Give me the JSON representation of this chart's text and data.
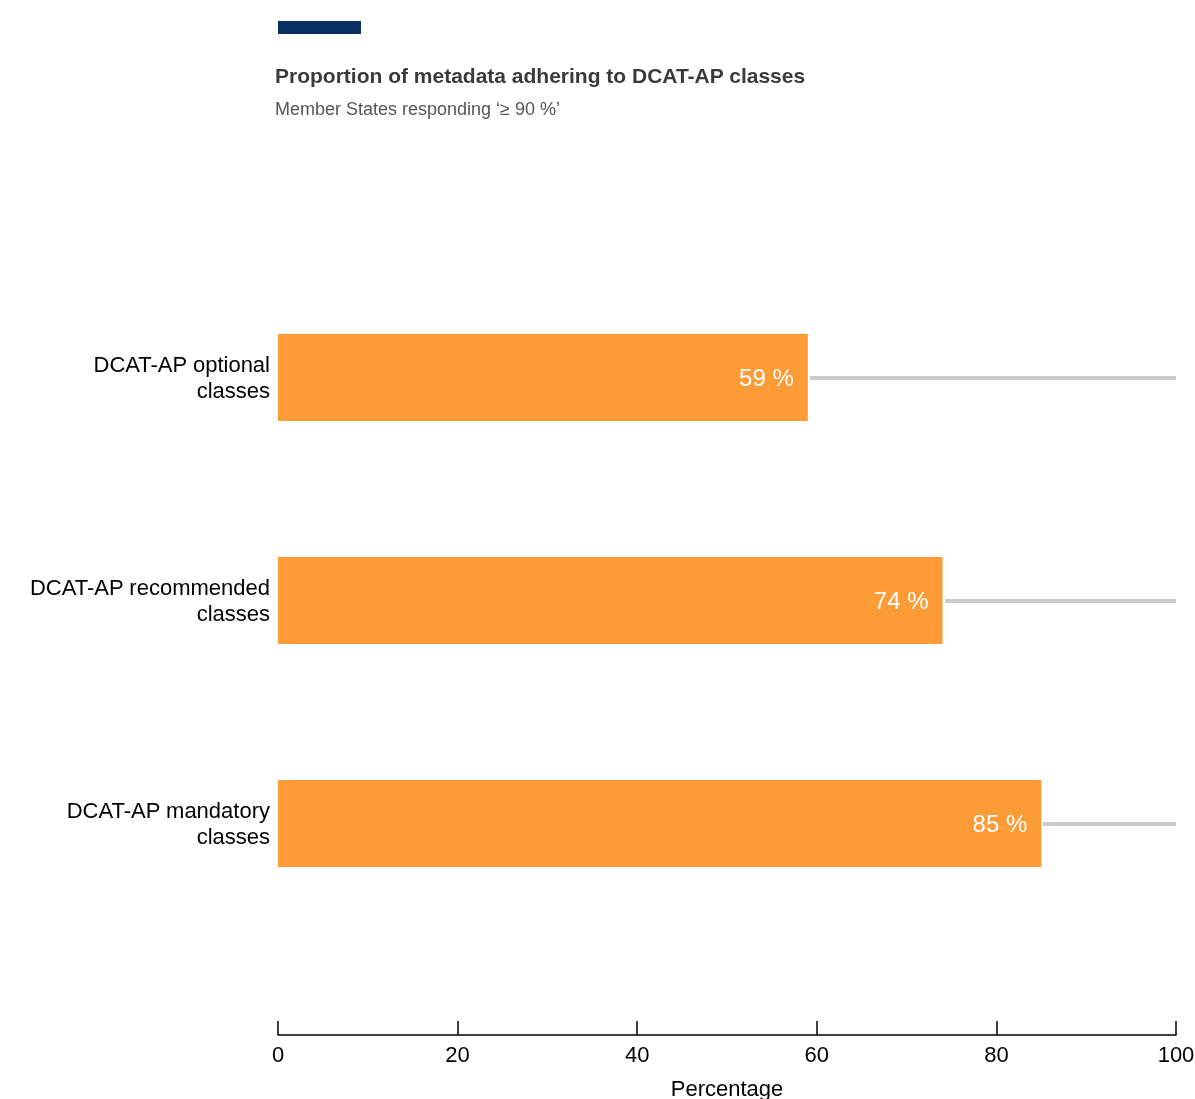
{
  "chart_data": {
    "type": "bar",
    "orientation": "horizontal",
    "title": "Proportion of metadata adhering to DCAT-AP classes",
    "subtitle": "Member States responding ‘≥ 90 %’",
    "xlabel": "Percentage",
    "categories": [
      "DCAT-AP optional classes",
      "DCAT-AP recommended classes",
      "DCAT-AP mandatory classes"
    ],
    "values": [
      59,
      74,
      85
    ],
    "value_labels": [
      "59 %",
      "74 %",
      "85 %"
    ],
    "color": "#fd9b37",
    "xlim": [
      0,
      100
    ],
    "xticks": [
      0,
      20,
      40,
      60,
      80,
      100
    ]
  }
}
